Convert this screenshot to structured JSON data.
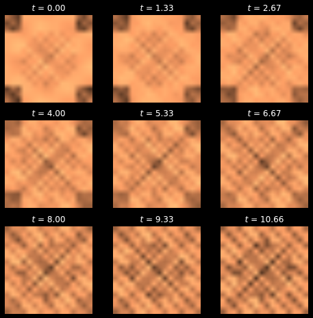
{
  "figure": {
    "background": "#000000",
    "colormap": "copper",
    "rows": 3,
    "cols": 3,
    "title_variable": "t",
    "title_separator": " = ",
    "panels": [
      {
        "time_value": "0.00"
      },
      {
        "time_value": "1.33"
      },
      {
        "time_value": "2.67"
      },
      {
        "time_value": "4.00"
      },
      {
        "time_value": "5.33"
      },
      {
        "time_value": "6.67"
      },
      {
        "time_value": "8.00"
      },
      {
        "time_value": "9.33"
      },
      {
        "time_value": "10.66"
      }
    ]
  }
}
